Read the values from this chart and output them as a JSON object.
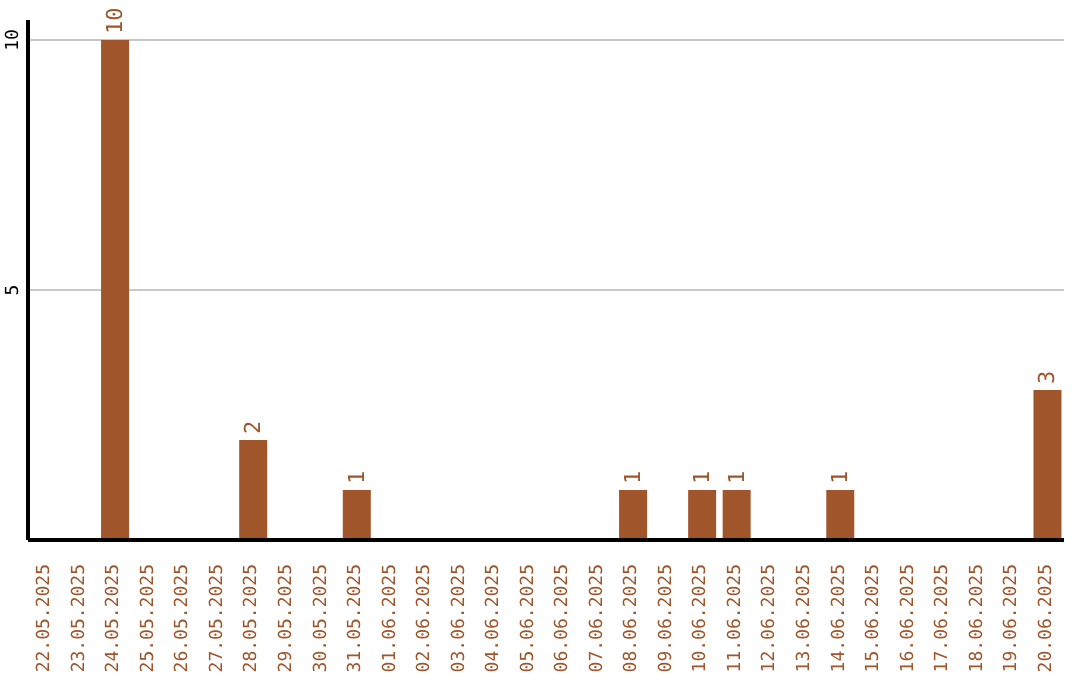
{
  "chart_data": {
    "type": "bar",
    "categories": [
      "22.05.2025",
      "23.05.2025",
      "24.05.2025",
      "25.05.2025",
      "26.05.2025",
      "27.05.2025",
      "28.05.2025",
      "29.05.2025",
      "30.05.2025",
      "31.05.2025",
      "01.06.2025",
      "02.06.2025",
      "03.06.2025",
      "04.06.2025",
      "05.06.2025",
      "06.06.2025",
      "07.06.2025",
      "08.06.2025",
      "09.06.2025",
      "10.06.2025",
      "11.06.2025",
      "12.06.2025",
      "13.06.2025",
      "14.06.2025",
      "15.06.2025",
      "16.06.2025",
      "17.06.2025",
      "18.06.2025",
      "19.06.2025",
      "20.06.2025"
    ],
    "values": [
      0,
      0,
      10,
      0,
      0,
      0,
      2,
      0,
      0,
      1,
      0,
      0,
      0,
      0,
      0,
      0,
      0,
      1,
      0,
      1,
      1,
      0,
      0,
      1,
      0,
      0,
      0,
      0,
      0,
      3
    ],
    "value_labels": [
      null,
      null,
      "10",
      null,
      null,
      null,
      "2",
      null,
      null,
      "1",
      null,
      null,
      null,
      null,
      null,
      null,
      null,
      "1",
      null,
      "1",
      "1",
      null,
      null,
      "1",
      null,
      null,
      null,
      null,
      null,
      "3"
    ],
    "color": "#a0552a",
    "ylim": [
      0,
      10.4
    ],
    "yticks": [
      5,
      10
    ],
    "grid": "y"
  }
}
